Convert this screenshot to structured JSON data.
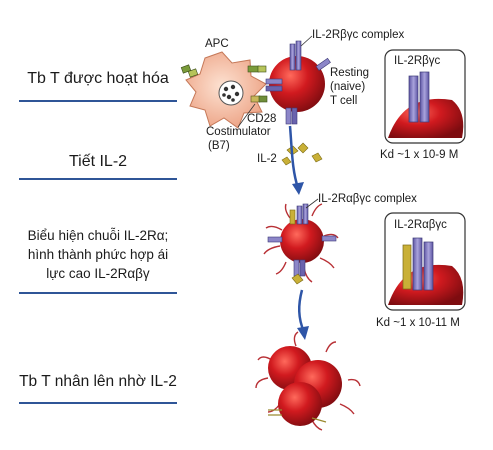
{
  "steps": [
    {
      "text": "Tb T được hoạt hóa"
    },
    {
      "text": "Tiết IL-2"
    },
    {
      "text": "Biểu hiện chuỗi IL-2Rα; hình thành phức hợp ái lực cao IL-2Rαβγ"
    },
    {
      "text": "Tb T nhân lên nhờ IL-2"
    }
  ],
  "labels": {
    "apc": "APC",
    "il2r_bg_complex": "IL-2Rβγc complex",
    "resting_cell": "Resting",
    "naive": "(naive)",
    "t_cell": "T cell",
    "cd28": "CD28",
    "costimulator": "Costimulator",
    "b7": "(B7)",
    "il2": "IL-2",
    "il2r_abg_complex": "IL-2Rαβγc complex",
    "inset1_title": "IL-2Rβγc",
    "inset1_kd": "Kd ~1 x 10-9 M",
    "inset2_title": "IL-2Rαβγc",
    "inset2_kd": "Kd ~1 x 10-11 M"
  },
  "colors": {
    "step_underline": "#2f5597",
    "t_cell_red": "#c8151c",
    "apc_fill": "#f3b79a",
    "receptor_purple": "#8c86c8",
    "il2_gold": "#c9b037",
    "arrow_blue": "#2e55a7"
  }
}
